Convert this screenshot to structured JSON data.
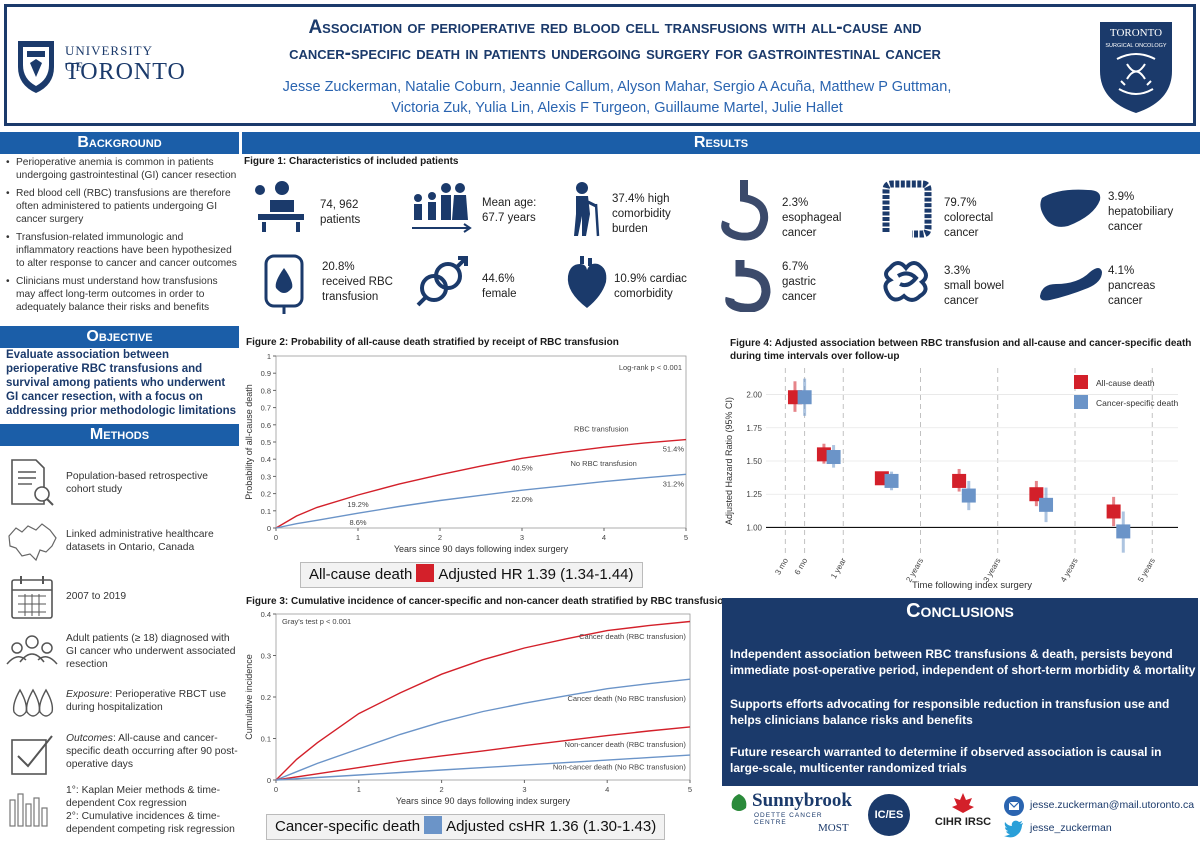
{
  "header": {
    "title_line1": "Association of perioperative red blood cell transfusions with all-cause and",
    "title_line2": "cancer-specific death in patients undergoing surgery for gastrointestinal cancer",
    "authors_line1": "Jesse Zuckerman, Natalie Coburn, Jeannie Callum, Alyson Mahar, Sergio A Acuña, Matthew P Guttman,",
    "authors_line2": "Victoria Zuk, Yulia Lin, Alexis F Turgeon, Guillaume Martel, Julie Hallet",
    "uoft_word1": "UNIVERSITY OF",
    "uoft_word2": "TORONTO",
    "ts_word1": "TORONTO",
    "ts_word2": "SURGICAL ONCOLOGY"
  },
  "background": {
    "heading": "Background",
    "items": [
      "Perioperative anemia is common in patients undergoing gastrointestinal (GI) cancer resection",
      "Red blood cell (RBC) transfusions are therefore often administered to patients undergoing GI cancer surgery",
      "Transfusion-related immunologic and inflammatory reactions have been hypothesized to alter response to cancer and cancer outcomes",
      "Clinicians must understand how transfusions may affect long-term outcomes in order to adequately balance their risks and benefits"
    ]
  },
  "objective": {
    "heading": "Objective",
    "text": "Evaluate association between perioperative RBC transfusions and survival among patients who underwent GI cancer resection, with a focus on addressing prior methodologic limitations"
  },
  "methods": {
    "heading": "Methods",
    "rows": [
      {
        "icon": "document-search-icon",
        "text": "Population-based retrospective cohort study"
      },
      {
        "icon": "canada-map-icon",
        "text": "Linked administrative healthcare datasets in Ontario, Canada"
      },
      {
        "icon": "calendar-icon",
        "text": "2007 to 2019"
      },
      {
        "icon": "people-icon",
        "text": "Adult patients (≥ 18) diagnosed with GI cancer who underwent associated resection"
      },
      {
        "icon": "blood-drops-icon",
        "text_em": "Exposure",
        "text": ": Perioperative RBCT use during hospitalization"
      },
      {
        "icon": "checkbox-icon",
        "text_em": "Outcomes",
        "text": ": All-cause  and cancer-specific death occurring after 90 post-operative days"
      },
      {
        "icon": "bars-icon",
        "text": "1°: Kaplan Meier methods & time-dependent Cox regression",
        "text2": "2°: Cumulative incidences & time-dependent competing risk regression"
      }
    ]
  },
  "results": {
    "heading": "Results",
    "fig1_title": "Figure 1: Characteristics of included patients",
    "stats": [
      {
        "icon": "surgeon-icon",
        "line1": "74, 962",
        "line2": "patients"
      },
      {
        "icon": "family-icon",
        "line1": "Mean age:",
        "line2": "67.7 years"
      },
      {
        "icon": "elderly-icon",
        "line1": "37.4% high",
        "line2": "comorbidity",
        "line3": "burden"
      },
      {
        "icon": "esophagus-icon",
        "line1": "2.3%",
        "line2": "esophageal",
        "line3": "cancer"
      },
      {
        "icon": "colon-icon",
        "line1": "79.7%",
        "line2": "colorectal",
        "line3": "cancer"
      },
      {
        "icon": "liver-icon",
        "line1": "3.9%",
        "line2": "hepatobiliary",
        "line3": "cancer"
      },
      {
        "icon": "blood-bag-icon",
        "line1": "20.8%",
        "line2": "received RBC",
        "line3": "transfusion"
      },
      {
        "icon": "gender-icon",
        "line1": "44.6%",
        "line2": "female"
      },
      {
        "icon": "heart-icon",
        "line1": "10.9% cardiac",
        "line2": "comorbidity"
      },
      {
        "icon": "stomach-icon",
        "line1": "6.7%",
        "line2": "gastric",
        "line3": "cancer"
      },
      {
        "icon": "small-bowel-icon",
        "line1": "3.3%",
        "line2": "small bowel",
        "line3": "cancer"
      },
      {
        "icon": "pancreas-icon",
        "line1": "4.1%",
        "line2": "pancreas",
        "line3": "cancer"
      }
    ],
    "fig2_title": "Figure 2: Probability of all-cause death stratified by receipt of RBC transfusion",
    "fig3_title": "Figure 3: Cumulative incidence of cancer-specific and non-cancer death stratified by RBC transfusion",
    "fig4_title_line1": "Figure 4: Adjusted association between RBC transfusion and all-cause and cancer-specific death",
    "fig4_title_line2": "during time intervals over follow-up",
    "hr_box1_label": "All-cause death",
    "hr_box1_value": "Adjusted HR 1.39 (1.34-1.44)",
    "hr_box2_label": "Cancer-specific death",
    "hr_box2_value": "Adjusted csHR 1.36 (1.30-1.43)"
  },
  "conclusions": {
    "heading": "Conclusions",
    "points": [
      "Independent association between RBC transfusions & death, persists beyond immediate post-operative period, independent of short-term morbidity & mortality",
      "Supports efforts advocating for responsible reduction in transfusion use and helps clinicians balance risks and benefits",
      "Future research warranted to determine if observed association is causal in large-scale, multicenter randomized trials"
    ]
  },
  "footer": {
    "sunnybrook": "Sunnybrook",
    "odette": "ODETTE CANCER CENTRE",
    "most": "MOST",
    "ices": "IC/ES",
    "cihr": "CIHR IRSC",
    "email": "jesse.zuckerman@mail.utoronto.ca",
    "twitter": "jesse_zuckerman",
    "colors": {
      "red": "#d3202a",
      "blue": "#6b94c8",
      "navy": "#1b3a6b",
      "headblue": "#1b5ea8"
    }
  },
  "chart_data": [
    {
      "type": "line",
      "id": "fig2",
      "xlabel": "Years since 90 days following index surgery",
      "ylabel": "Probability of all-cause death",
      "xlim": [
        0,
        5
      ],
      "ylim": [
        0,
        1
      ],
      "xticks": [
        0,
        1,
        2,
        3,
        4,
        5
      ],
      "yticks": [
        0,
        0.1,
        0.2,
        0.3,
        0.4,
        0.5,
        0.6,
        0.7,
        0.8,
        0.9,
        1
      ],
      "annotation": "Log-rank p < 0.001",
      "series": [
        {
          "name": "RBC transfusion",
          "color": "#d3202a",
          "x": [
            0,
            0.25,
            0.5,
            1,
            1.5,
            2,
            2.5,
            3,
            3.5,
            4,
            4.5,
            5
          ],
          "y": [
            0,
            0.07,
            0.12,
            0.192,
            0.255,
            0.31,
            0.36,
            0.405,
            0.44,
            0.47,
            0.495,
            0.514
          ]
        },
        {
          "name": "No RBC transfusion",
          "color": "#6b94c8",
          "x": [
            0,
            0.25,
            0.5,
            1,
            1.5,
            2,
            2.5,
            3,
            3.5,
            4,
            4.5,
            5
          ],
          "y": [
            0,
            0.025,
            0.045,
            0.086,
            0.125,
            0.16,
            0.19,
            0.22,
            0.245,
            0.27,
            0.292,
            0.312
          ]
        }
      ],
      "data_labels": [
        {
          "x": 1,
          "y": 0.192,
          "text": "19.2%"
        },
        {
          "x": 1,
          "y": 0.086,
          "text": "8.6%"
        },
        {
          "x": 3,
          "y": 0.405,
          "text": "40.5%"
        },
        {
          "x": 3,
          "y": 0.22,
          "text": "22.0%"
        },
        {
          "x": 5,
          "y": 0.514,
          "text": "51.4%"
        },
        {
          "x": 5,
          "y": 0.312,
          "text": "31.2%"
        }
      ]
    },
    {
      "type": "line",
      "id": "fig3",
      "xlabel": "Years since 90 days following index surgery",
      "ylabel": "Cumulative incidence",
      "xlim": [
        0,
        5
      ],
      "ylim": [
        0,
        0.4
      ],
      "xticks": [
        0,
        1,
        2,
        3,
        4,
        5
      ],
      "yticks": [
        0,
        0.1,
        0.2,
        0.3,
        0.4
      ],
      "annotation": "Gray's test p < 0.001",
      "series": [
        {
          "name": "Cancer death (RBC transfusion)",
          "color": "#d3202a",
          "x": [
            0,
            0.25,
            0.5,
            1,
            1.5,
            2,
            2.5,
            3,
            3.5,
            4,
            4.5,
            5
          ],
          "y": [
            0,
            0.05,
            0.09,
            0.16,
            0.21,
            0.255,
            0.29,
            0.318,
            0.34,
            0.36,
            0.372,
            0.382
          ]
        },
        {
          "name": "Cancer death (No RBC transfusion)",
          "color": "#6b94c8",
          "x": [
            0,
            0.25,
            0.5,
            1,
            1.5,
            2,
            2.5,
            3,
            3.5,
            4,
            4.5,
            5
          ],
          "y": [
            0,
            0.02,
            0.04,
            0.075,
            0.11,
            0.14,
            0.165,
            0.185,
            0.203,
            0.22,
            0.232,
            0.243
          ]
        },
        {
          "name": "Non-cancer death (RBC transfusion)",
          "color": "#d3202a",
          "x": [
            0,
            0.5,
            1,
            1.5,
            2,
            2.5,
            3,
            3.5,
            4,
            4.5,
            5
          ],
          "y": [
            0,
            0.015,
            0.03,
            0.045,
            0.058,
            0.07,
            0.083,
            0.095,
            0.107,
            0.118,
            0.128
          ]
        },
        {
          "name": "Non-cancer death (No RBC transfusion)",
          "color": "#6b94c8",
          "x": [
            0,
            0.5,
            1,
            1.5,
            2,
            2.5,
            3,
            3.5,
            4,
            4.5,
            5
          ],
          "y": [
            0,
            0.006,
            0.012,
            0.018,
            0.024,
            0.03,
            0.036,
            0.042,
            0.048,
            0.054,
            0.06
          ]
        }
      ]
    },
    {
      "type": "scatter",
      "id": "fig4",
      "xlabel": "Time following index surgery",
      "ylabel": "Adjusted Hazard Ratio (95% CI)",
      "ylim": [
        0.8,
        2.2
      ],
      "yticks": [
        1.0,
        1.25,
        1.5,
        1.75,
        2.0
      ],
      "ytick_labels": [
        "1.00",
        "1.25",
        "1.50",
        "1.75",
        "2.00"
      ],
      "categories": [
        "3 mo",
        "6 mo",
        "1 year",
        "2 years",
        "3 years",
        "4 years",
        "5 years"
      ],
      "category_pos": [
        3,
        6,
        12,
        24,
        36,
        48,
        60
      ],
      "reference_line": 1.0,
      "series": [
        {
          "name": "All-cause death",
          "color": "#d3202a",
          "x": [
            4.5,
            9,
            18,
            30,
            42,
            54
          ],
          "y": [
            1.98,
            1.55,
            1.37,
            1.35,
            1.25,
            1.12
          ],
          "lo": [
            1.87,
            1.48,
            1.32,
            1.27,
            1.16,
            1.01
          ],
          "hi": [
            2.1,
            1.63,
            1.42,
            1.44,
            1.35,
            1.23
          ]
        },
        {
          "name": "Cancer-specific death",
          "color": "#6b94c8",
          "x": [
            6,
            10.5,
            19.5,
            31.5,
            43.5,
            55.5
          ],
          "y": [
            1.98,
            1.53,
            1.35,
            1.24,
            1.17,
            0.97
          ],
          "lo": [
            1.84,
            1.45,
            1.28,
            1.13,
            1.04,
            0.81
          ],
          "hi": [
            2.12,
            1.62,
            1.42,
            1.35,
            1.3,
            1.12
          ]
        }
      ]
    }
  ]
}
